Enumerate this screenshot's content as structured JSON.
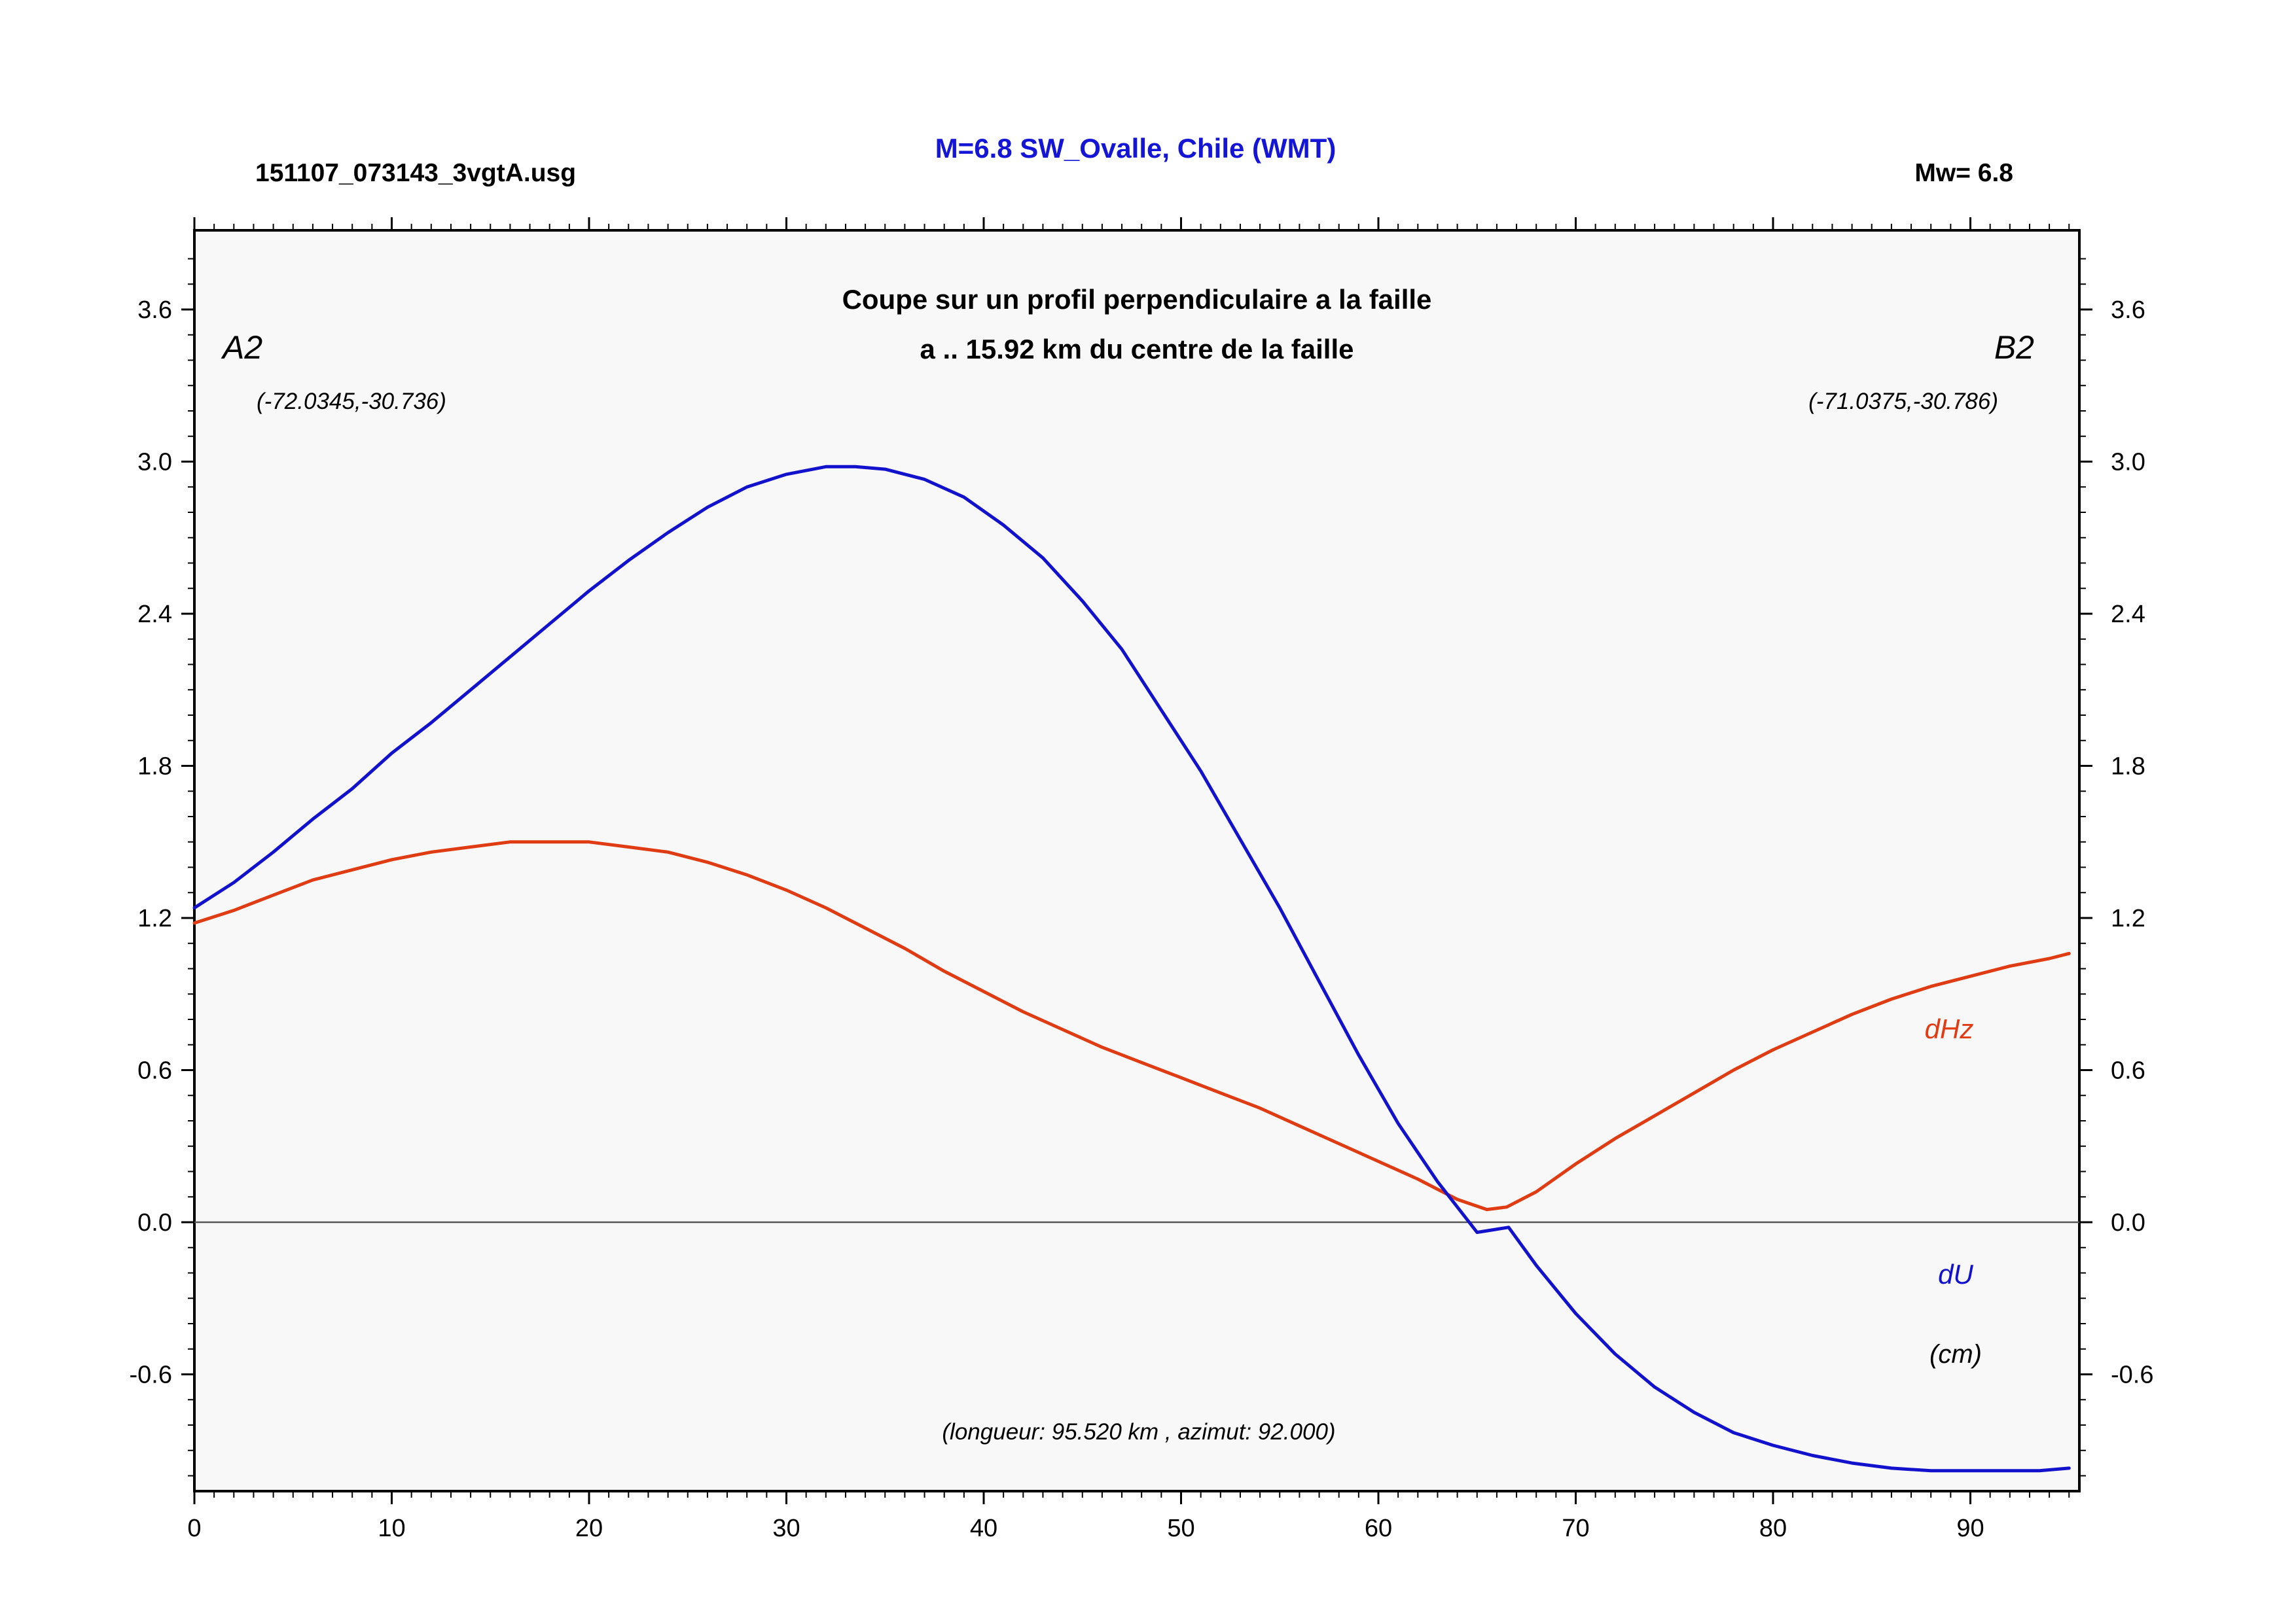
{
  "header": {
    "file_name": "151107_073143_3vgtA.usg",
    "title": "M=6.8 SW_Ovalle, Chile (WMT)",
    "magnitude": "Mw= 6.8"
  },
  "colors": {
    "du": "#1212cc",
    "dhz": "#e03c14",
    "title": "#1515d6",
    "plot_bg": "#f8f8f8"
  },
  "chart_data": {
    "type": "line",
    "title": "Coupe sur un profil perpendiculaire a la faille",
    "subtitle": "a .. 15.92 km du centre de la faille",
    "xlim": [
      0,
      95.52
    ],
    "ylim": [
      -1.05,
      3.9
    ],
    "x_ticks": [
      0,
      10,
      20,
      30,
      40,
      50,
      60,
      70,
      80,
      90
    ],
    "x_tick_labels": [
      "0",
      "10",
      "20",
      "30",
      "40",
      "50",
      "60",
      "70",
      "80",
      "90"
    ],
    "y_ticks": [
      -0.6,
      0.0,
      0.6,
      1.2,
      1.8,
      2.4,
      3.0,
      3.6
    ],
    "y_tick_labels": [
      "-0.6",
      "0.0",
      "0.6",
      "1.2",
      "1.8",
      "2.4",
      "3.0",
      "3.6"
    ],
    "grid": false,
    "zero_line": true,
    "annotations": {
      "left_point": "A2",
      "left_coords": "(-72.0345,-30.736)",
      "right_point": "B2",
      "right_coords": "(-71.0375,-30.786)",
      "footer": "(longueur: 95.520 km , azimut: 92.000)",
      "units": "(cm)"
    },
    "series": [
      {
        "name": "dU",
        "x": [
          0,
          2,
          4,
          6,
          8,
          10,
          12,
          14,
          16,
          18,
          20,
          22,
          24,
          26,
          28,
          30,
          32,
          33.5,
          35,
          37,
          39,
          41,
          43,
          45,
          47,
          49,
          51,
          53,
          55,
          57,
          59,
          61,
          63,
          65,
          66.6,
          68,
          70,
          72,
          74,
          76,
          78,
          80,
          82,
          84,
          86,
          88,
          90,
          92,
          93.5,
          95
        ],
        "y": [
          1.24,
          1.34,
          1.46,
          1.59,
          1.71,
          1.85,
          1.97,
          2.1,
          2.23,
          2.36,
          2.49,
          2.61,
          2.72,
          2.82,
          2.9,
          2.95,
          2.98,
          2.98,
          2.97,
          2.93,
          2.86,
          2.75,
          2.62,
          2.45,
          2.26,
          2.02,
          1.78,
          1.51,
          1.24,
          0.95,
          0.66,
          0.39,
          0.16,
          -0.04,
          -0.02,
          -0.17,
          -0.36,
          -0.52,
          -0.65,
          -0.75,
          -0.83,
          -0.88,
          -0.92,
          -0.95,
          -0.97,
          -0.98,
          -0.98,
          -0.98,
          -0.98,
          -0.97
        ]
      },
      {
        "name": "dHz",
        "x": [
          0,
          2,
          4,
          6,
          8,
          10,
          12,
          14,
          16,
          18,
          20,
          22,
          24,
          26,
          28,
          30,
          32,
          34,
          36,
          38,
          40,
          42,
          44,
          46,
          48,
          50,
          52,
          54,
          56,
          58,
          60,
          62,
          64,
          65.5,
          66.5,
          68,
          70,
          72,
          74,
          76,
          78,
          80,
          82,
          84,
          86,
          88,
          90,
          92,
          94,
          95
        ],
        "y": [
          1.18,
          1.23,
          1.29,
          1.35,
          1.39,
          1.43,
          1.46,
          1.48,
          1.5,
          1.5,
          1.5,
          1.48,
          1.46,
          1.42,
          1.37,
          1.31,
          1.24,
          1.16,
          1.08,
          0.99,
          0.91,
          0.83,
          0.76,
          0.69,
          0.63,
          0.57,
          0.51,
          0.45,
          0.38,
          0.31,
          0.24,
          0.17,
          0.09,
          0.05,
          0.06,
          0.12,
          0.23,
          0.33,
          0.42,
          0.51,
          0.6,
          0.68,
          0.75,
          0.82,
          0.88,
          0.93,
          0.97,
          1.01,
          1.04,
          1.06
        ]
      }
    ]
  }
}
